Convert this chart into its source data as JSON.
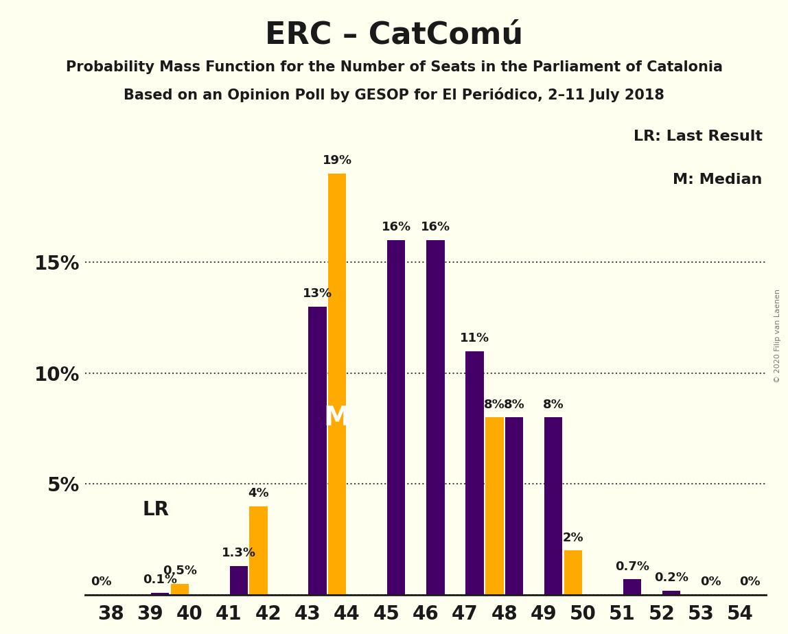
{
  "title": "ERC – CatComú",
  "subtitle1": "Probability Mass Function for the Number of Seats in the Parliament of Catalonia",
  "subtitle2": "Based on an Opinion Poll by GESOP for El Periódico, 2–11 July 2018",
  "copyright": "© 2020 Filip van Laenen",
  "seats": [
    38,
    39,
    40,
    41,
    42,
    43,
    44,
    45,
    46,
    47,
    48,
    49,
    50,
    51,
    52,
    53,
    54
  ],
  "pmf_values": [
    0.0,
    0.001,
    0.0,
    0.013,
    0.0,
    0.13,
    0.0,
    0.16,
    0.16,
    0.11,
    0.08,
    0.08,
    0.0,
    0.007,
    0.002,
    0.0,
    0.0
  ],
  "lr_values": [
    0.0,
    0.0,
    0.005,
    0.0,
    0.04,
    0.0,
    0.19,
    0.0,
    0.0,
    0.0,
    0.08,
    0.0,
    0.02,
    0.0,
    0.0,
    0.0,
    0.0
  ],
  "bar_labels_pmf": [
    "",
    "0.1%",
    "",
    "1.3%",
    "",
    "13%",
    "",
    "16%",
    "16%",
    "11%",
    "8%",
    "8%",
    "",
    "0.7%",
    "0.2%",
    "0%",
    "0%"
  ],
  "bar_labels_lr": [
    "0%",
    "",
    "0.5%",
    "",
    "4%",
    "",
    "19%",
    "",
    "",
    "",
    "8%",
    "",
    "2%",
    "",
    "",
    "",
    ""
  ],
  "pmf_color": "#440066",
  "lr_color": "#ffaa00",
  "background_color": "#fffff0",
  "median_seat": 44,
  "lr_seat": 40,
  "ylim": [
    0,
    0.215
  ],
  "yticks": [
    0.0,
    0.05,
    0.1,
    0.15
  ],
  "ytick_labels": [
    "",
    "5%",
    "10%",
    "15%"
  ],
  "legend_lr": "LR: Last Result",
  "legend_m": "M: Median",
  "label_fontsize": 13,
  "axis_fontsize": 20,
  "title_fontsize": 32,
  "subtitle_fontsize": 15
}
